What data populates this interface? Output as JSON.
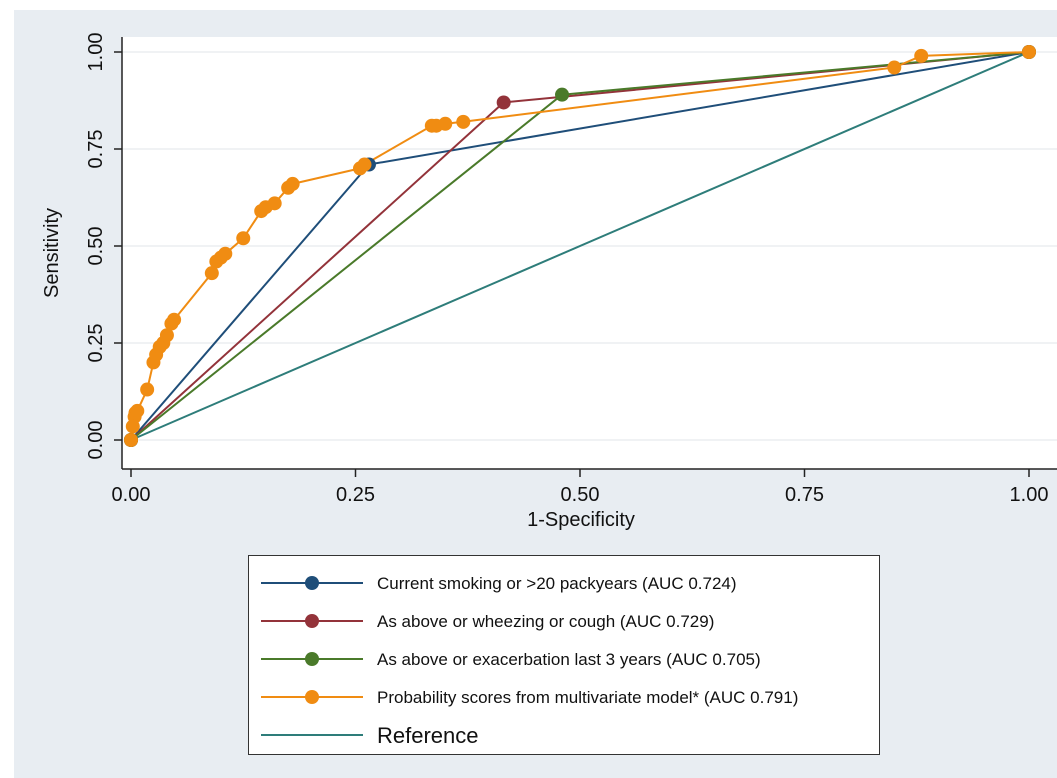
{
  "chart_data": {
    "type": "line",
    "xlabel": "1-Specificity",
    "ylabel": "Sensitivity",
    "xlim": [
      0,
      1
    ],
    "ylim": [
      0,
      1
    ],
    "xticks": [
      "0.00",
      "0.25",
      "0.50",
      "0.75",
      "1.00"
    ],
    "yticks": [
      "0.00",
      "0.25",
      "0.50",
      "0.75",
      "1.00"
    ],
    "grid": "horizontal",
    "legend_position": "bottom",
    "series": [
      {
        "name": "Reference",
        "color": "#2e7d7a",
        "markers": false,
        "x": [
          0,
          1
        ],
        "y": [
          0,
          1
        ]
      },
      {
        "name": "Current smoking or >20 packyears (AUC 0.724)",
        "color": "#1f4e79",
        "markers": true,
        "x": [
          0,
          0.265,
          1
        ],
        "y": [
          0,
          0.71,
          1
        ]
      },
      {
        "name": "As above or wheezing or cough (AUC 0.729)",
        "color": "#93333a",
        "markers": true,
        "x": [
          0,
          0.415,
          1
        ],
        "y": [
          0,
          0.87,
          1
        ]
      },
      {
        "name": "As above or exacerbation last 3 years (AUC 0.705)",
        "color": "#4a7a2a",
        "markers": true,
        "x": [
          0,
          0.48,
          1
        ],
        "y": [
          0,
          0.89,
          1
        ]
      },
      {
        "name": "Probability scores from multivariate model* (AUC 0.791)",
        "color": "#f08c12",
        "markers": true,
        "x": [
          0,
          0.002,
          0.004,
          0.005,
          0.007,
          0.018,
          0.025,
          0.028,
          0.032,
          0.036,
          0.04,
          0.045,
          0.048,
          0.09,
          0.095,
          0.1,
          0.105,
          0.125,
          0.145,
          0.15,
          0.16,
          0.175,
          0.18,
          0.255,
          0.26,
          0.335,
          0.34,
          0.35,
          0.37,
          0.85,
          0.88,
          1
        ],
        "y": [
          0,
          0.035,
          0.06,
          0.07,
          0.075,
          0.13,
          0.2,
          0.22,
          0.24,
          0.25,
          0.27,
          0.3,
          0.31,
          0.43,
          0.46,
          0.47,
          0.48,
          0.52,
          0.59,
          0.6,
          0.61,
          0.65,
          0.66,
          0.7,
          0.71,
          0.81,
          0.81,
          0.815,
          0.82,
          0.96,
          0.99,
          1
        ]
      }
    ],
    "legend_order": [
      1,
      2,
      3,
      4,
      0
    ]
  }
}
